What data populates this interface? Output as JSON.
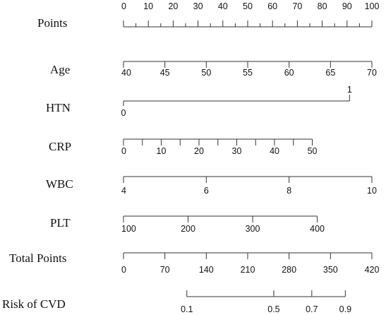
{
  "chart_data": {
    "type": "nomogram",
    "rows": [
      {
        "key": "points",
        "label": "Points",
        "min": 0,
        "max": 100,
        "major_ticks": [
          0,
          10,
          20,
          30,
          40,
          50,
          60,
          70,
          80,
          90,
          100
        ],
        "minor_ticks": [
          5,
          15,
          25,
          35,
          45,
          55,
          65,
          75,
          85,
          95
        ],
        "tick_labels": [
          "0",
          "10",
          "20",
          "30",
          "40",
          "50",
          "60",
          "70",
          "80",
          "90",
          "100"
        ],
        "points_at_min": 0,
        "points_at_max": 100
      },
      {
        "key": "age",
        "label": "Age",
        "min": 40,
        "max": 70,
        "major_ticks": [
          40,
          45,
          50,
          55,
          60,
          65,
          70
        ],
        "tick_labels": [
          "40",
          "45",
          "50",
          "55",
          "60",
          "65",
          "70"
        ],
        "points_at_min": 0,
        "points_at_max": 100
      },
      {
        "key": "htn",
        "label": "HTN",
        "min": 0,
        "max": 1,
        "major_ticks": [
          0,
          1
        ],
        "tick_labels": [
          "0",
          "1"
        ],
        "points_at_min": 0,
        "points_at_max": 91
      },
      {
        "key": "crp",
        "label": "CRP",
        "min": 0,
        "max": 50,
        "major_ticks": [
          0,
          5,
          10,
          15,
          20,
          25,
          30,
          35,
          40,
          45,
          50
        ],
        "tick_labels": [
          "0",
          "10",
          "20",
          "30",
          "40",
          "50"
        ],
        "tick_label_values": [
          0,
          10,
          20,
          30,
          40,
          50
        ],
        "points_at_min": 0,
        "points_at_max": 76
      },
      {
        "key": "wbc",
        "label": "WBC",
        "min": 4,
        "max": 10,
        "major_ticks": [
          4,
          6,
          8,
          10
        ],
        "tick_labels": [
          "4",
          "6",
          "8",
          "10"
        ],
        "points_at_min": 0,
        "points_at_max": 100
      },
      {
        "key": "plt",
        "label": "PLT",
        "min": 100,
        "max": 400,
        "major_ticks": [
          100,
          200,
          300,
          400
        ],
        "tick_labels": [
          "100",
          "200",
          "300",
          "400"
        ],
        "points_at_min": 0,
        "points_at_max": 78
      },
      {
        "key": "total_points",
        "label": "Total Points",
        "min": 0,
        "max": 420,
        "major_ticks": [
          0,
          70,
          140,
          210,
          280,
          350,
          420
        ],
        "tick_labels": [
          "0",
          "70",
          "140",
          "210",
          "280",
          "350",
          "420"
        ],
        "points_at_min": 0,
        "points_at_max": 100
      },
      {
        "key": "risk",
        "label": "Risk of CVD",
        "major_ticks": [
          0.1,
          0.5,
          0.7,
          0.9
        ],
        "tick_labels": [
          "0.1",
          "0.5",
          "0.7",
          "0.9"
        ],
        "points_at_ticks": [
          25.5,
          60.5,
          75.8,
          89.3
        ]
      }
    ]
  }
}
